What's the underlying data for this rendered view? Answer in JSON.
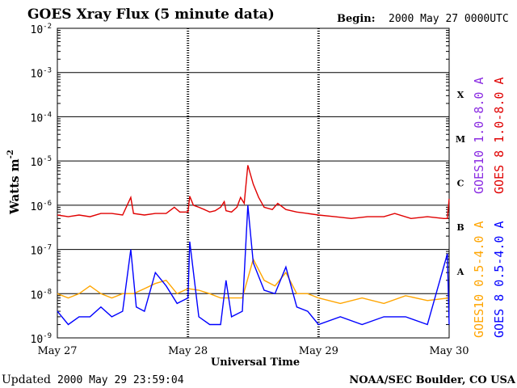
{
  "colors": {
    "goes10_long": "#8a2be2",
    "goes8_long": "#e00000",
    "goes10_short": "#ffa500",
    "goes8_short": "#0000ff",
    "axis": "#000000",
    "background": "#ffffff"
  },
  "header": {
    "title": "GOES Xray Flux (5 minute data)",
    "begin_label": "Begin:",
    "begin_value": "2000 May 27 0000UTC"
  },
  "footer": {
    "updated_label": "Updated",
    "updated_value": "2000 May 29 23:59:04",
    "credit": "NOAA/SEC Boulder, CO USA"
  },
  "chart_data": {
    "type": "line",
    "title": "GOES Xray Flux (5 minute data)",
    "xlabel": "Universal Time",
    "ylabel": "Watts m",
    "ylabel_exponent": "-2",
    "y_scale": "log",
    "ylim": [
      1e-09,
      0.01
    ],
    "xlim": [
      "2000-05-27 00:00",
      "2000-05-30 00:00"
    ],
    "x_ticks": [
      "May 27",
      "May 28",
      "May 29",
      "May 30"
    ],
    "y_ticks": [
      {
        "base": "10",
        "exp": "-9",
        "value": 1e-09
      },
      {
        "base": "10",
        "exp": "-8",
        "value": 1e-08
      },
      {
        "base": "10",
        "exp": "-7",
        "value": 1e-07
      },
      {
        "base": "10",
        "exp": "-6",
        "value": 1e-06
      },
      {
        "base": "10",
        "exp": "-5",
        "value": 1e-05
      },
      {
        "base": "10",
        "exp": "-4",
        "value": 0.0001
      },
      {
        "base": "10",
        "exp": "-3",
        "value": 0.001
      },
      {
        "base": "10",
        "exp": "-2",
        "value": 0.01
      }
    ],
    "flare_classes": [
      {
        "label": "A",
        "value": 3.16e-08
      },
      {
        "label": "B",
        "value": 3.16e-07
      },
      {
        "label": "C",
        "value": 3.16e-06
      },
      {
        "label": "M",
        "value": 3.16e-05
      },
      {
        "label": "X",
        "value": 0.000316
      }
    ],
    "grid": true,
    "legend": "right",
    "series": [
      {
        "name": "GOES10 1.0-8.0 A",
        "color": "#8a2be2",
        "x": [],
        "y": []
      },
      {
        "name": "GOES 8 1.0-8.0 A",
        "color": "#e00000",
        "x": [
          "2000-05-27 00:00",
          "2000-05-27 02:00",
          "2000-05-27 04:00",
          "2000-05-27 06:00",
          "2000-05-27 08:00",
          "2000-05-27 10:00",
          "2000-05-27 12:00",
          "2000-05-27 13:30",
          "2000-05-27 14:00",
          "2000-05-27 16:00",
          "2000-05-27 18:00",
          "2000-05-27 20:00",
          "2000-05-27 21:30",
          "2000-05-27 22:30",
          "2000-05-28 00:00",
          "2000-05-28 00:20",
          "2000-05-28 01:00",
          "2000-05-28 02:00",
          "2000-05-28 03:00",
          "2000-05-28 04:00",
          "2000-05-28 05:00",
          "2000-05-28 06:00",
          "2000-05-28 06:40",
          "2000-05-28 07:00",
          "2000-05-28 08:00",
          "2000-05-28 09:00",
          "2000-05-28 09:40",
          "2000-05-28 10:20",
          "2000-05-28 11:00",
          "2000-05-28 12:00",
          "2000-05-28 13:00",
          "2000-05-28 14:00",
          "2000-05-28 15:30",
          "2000-05-28 16:30",
          "2000-05-28 18:00",
          "2000-05-28 20:00",
          "2000-05-28 22:00",
          "2000-05-29 00:00",
          "2000-05-29 03:00",
          "2000-05-29 06:00",
          "2000-05-29 09:00",
          "2000-05-29 12:00",
          "2000-05-29 14:00",
          "2000-05-29 17:00",
          "2000-05-29 20:00",
          "2000-05-29 23:00",
          "2000-05-29 23:40",
          "2000-05-30 00:00"
        ],
        "y": [
          6e-07,
          5.5e-07,
          6e-07,
          5.5e-07,
          6.5e-07,
          6.5e-07,
          6e-07,
          1.5e-06,
          6.5e-07,
          6e-07,
          6.5e-07,
          6.5e-07,
          9e-07,
          7e-07,
          7e-07,
          1.6e-06,
          1e-06,
          9e-07,
          8e-07,
          7e-07,
          7.5e-07,
          9e-07,
          1.2e-06,
          7.5e-07,
          7e-07,
          9e-07,
          1.5e-06,
          1.1e-06,
          8e-06,
          3e-06,
          1.5e-06,
          9e-07,
          8e-07,
          1.1e-06,
          8e-07,
          7e-07,
          6.5e-07,
          6e-07,
          5.5e-07,
          5e-07,
          5.5e-07,
          5.5e-07,
          6.5e-07,
          5e-07,
          5.5e-07,
          5e-07,
          5e-07,
          1.4e-06
        ]
      },
      {
        "name": "GOES10 0.5-4.0 A",
        "color": "#ffa500",
        "x": [
          "2000-05-27 00:00",
          "2000-05-27 02:00",
          "2000-05-27 04:00",
          "2000-05-27 06:00",
          "2000-05-27 08:00",
          "2000-05-27 10:00",
          "2000-05-27 12:00",
          "2000-05-27 14:00",
          "2000-05-27 16:00",
          "2000-05-27 18:00",
          "2000-05-27 20:00",
          "2000-05-27 22:00",
          "2000-05-28 00:00",
          "2000-05-28 02:00",
          "2000-05-28 04:00",
          "2000-05-28 06:00",
          "2000-05-28 08:00",
          "2000-05-28 10:00",
          "2000-05-28 12:00",
          "2000-05-28 14:00",
          "2000-05-28 16:00",
          "2000-05-28 18:00",
          "2000-05-28 20:00",
          "2000-05-28 22:00",
          "2000-05-29 00:00",
          "2000-05-29 04:00",
          "2000-05-29 08:00",
          "2000-05-29 12:00",
          "2000-05-29 16:00",
          "2000-05-29 20:00",
          "2000-05-30 00:00"
        ],
        "y": [
          1e-08,
          8e-09,
          1e-08,
          1.5e-08,
          1e-08,
          8e-09,
          1e-08,
          1e-08,
          1.3e-08,
          1.7e-08,
          2e-08,
          1e-08,
          1.3e-08,
          1.2e-08,
          1e-08,
          8e-09,
          8e-09,
          8e-09,
          6e-08,
          2e-08,
          1.5e-08,
          3e-08,
          1e-08,
          1e-08,
          8e-09,
          6e-09,
          8e-09,
          6e-09,
          9e-09,
          7e-09,
          8e-09
        ]
      },
      {
        "name": "GOES 8 0.5-4.0 A",
        "color": "#0000ff",
        "x": [
          "2000-05-27 00:00",
          "2000-05-27 02:00",
          "2000-05-27 04:00",
          "2000-05-27 06:00",
          "2000-05-27 08:00",
          "2000-05-27 10:00",
          "2000-05-27 12:00",
          "2000-05-27 13:30",
          "2000-05-27 14:30",
          "2000-05-27 16:00",
          "2000-05-27 18:00",
          "2000-05-27 20:00",
          "2000-05-27 22:00",
          "2000-05-28 00:00",
          "2000-05-28 00:20",
          "2000-05-28 02:00",
          "2000-05-28 04:00",
          "2000-05-28 06:00",
          "2000-05-28 07:00",
          "2000-05-28 08:00",
          "2000-05-28 10:00",
          "2000-05-28 11:00",
          "2000-05-28 12:00",
          "2000-05-28 14:00",
          "2000-05-28 16:00",
          "2000-05-28 18:00",
          "2000-05-28 20:00",
          "2000-05-28 22:00",
          "2000-05-29 00:00",
          "2000-05-29 04:00",
          "2000-05-29 08:00",
          "2000-05-29 12:00",
          "2000-05-29 16:00",
          "2000-05-29 20:00",
          "2000-05-29 23:40",
          "2000-05-30 00:00"
        ],
        "y": [
          4e-09,
          2e-09,
          3e-09,
          3e-09,
          5e-09,
          3e-09,
          4e-09,
          1e-07,
          5e-09,
          4e-09,
          3e-08,
          1.5e-08,
          6e-09,
          8e-09,
          1.5e-07,
          3e-09,
          2e-09,
          2e-09,
          2e-08,
          3e-09,
          4e-09,
          1e-06,
          5e-08,
          1.2e-08,
          1e-08,
          4e-08,
          5e-09,
          4e-09,
          2e-09,
          3e-09,
          2e-09,
          3e-09,
          3e-09,
          2e-09,
          8e-08,
          2e-09
        ]
      }
    ]
  }
}
